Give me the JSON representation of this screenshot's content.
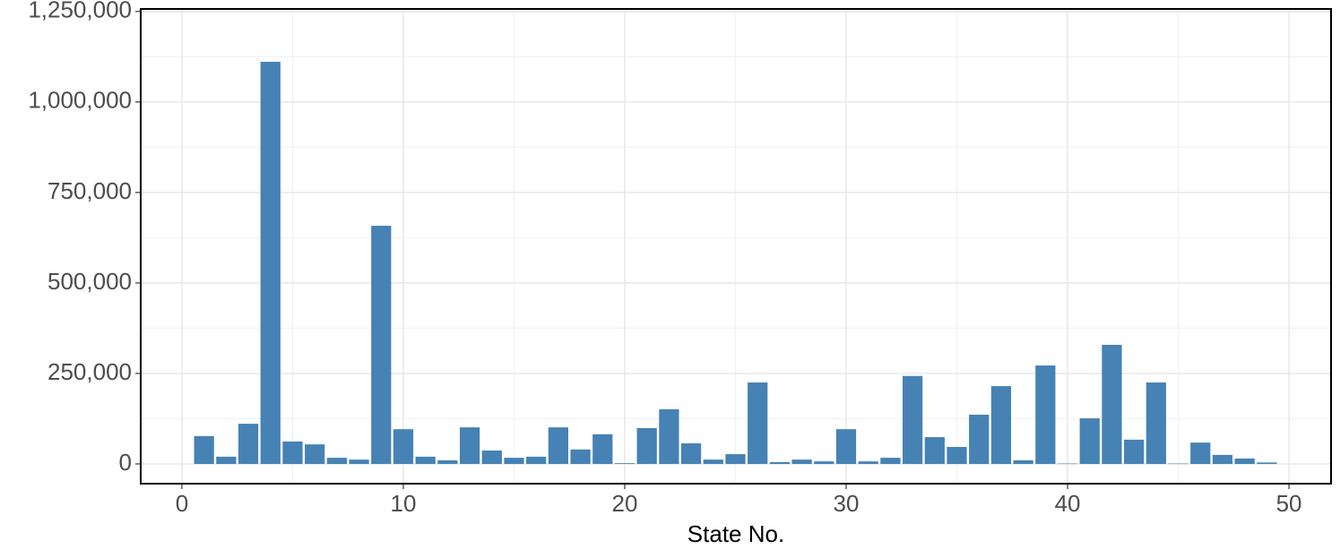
{
  "chart_data": {
    "type": "bar",
    "xlabel": "State No.",
    "x": [
      1,
      2,
      3,
      4,
      5,
      6,
      7,
      8,
      9,
      10,
      11,
      12,
      13,
      14,
      15,
      16,
      17,
      18,
      19,
      20,
      21,
      22,
      23,
      24,
      25,
      26,
      27,
      28,
      29,
      30,
      31,
      32,
      33,
      34,
      35,
      36,
      37,
      38,
      39,
      40,
      41,
      42,
      43,
      44,
      45,
      46,
      47,
      48,
      49
    ],
    "values": [
      77000,
      20000,
      111000,
      1111000,
      62000,
      54000,
      17000,
      12000,
      658000,
      96000,
      20000,
      10000,
      101000,
      37000,
      17000,
      20000,
      101000,
      40000,
      82000,
      2000,
      99000,
      151000,
      57000,
      12000,
      27000,
      225000,
      5000,
      12000,
      7000,
      96000,
      7000,
      17000,
      243000,
      74000,
      47000,
      136000,
      215000,
      10000,
      272000,
      1000,
      126000,
      329000,
      67000,
      225000,
      1000,
      59000,
      25000,
      15000,
      4000
    ],
    "color": "#4682b4",
    "xlim": [
      -1.86,
      51.9
    ],
    "xticks": [
      0,
      10,
      20,
      30,
      40,
      50
    ],
    "ylim": [
      -54500,
      1257000
    ],
    "yticks": [
      0,
      {
        "value": 250000,
        "label": "250,000"
      },
      {
        "value": 500000,
        "label": "500,000"
      },
      {
        "value": 750000,
        "label": "750,000"
      },
      {
        "value": 1000000,
        "label": "1,000,000"
      },
      {
        "value": 1250000,
        "label": "1,250,000"
      }
    ],
    "grid": true,
    "minor_grid": true
  }
}
